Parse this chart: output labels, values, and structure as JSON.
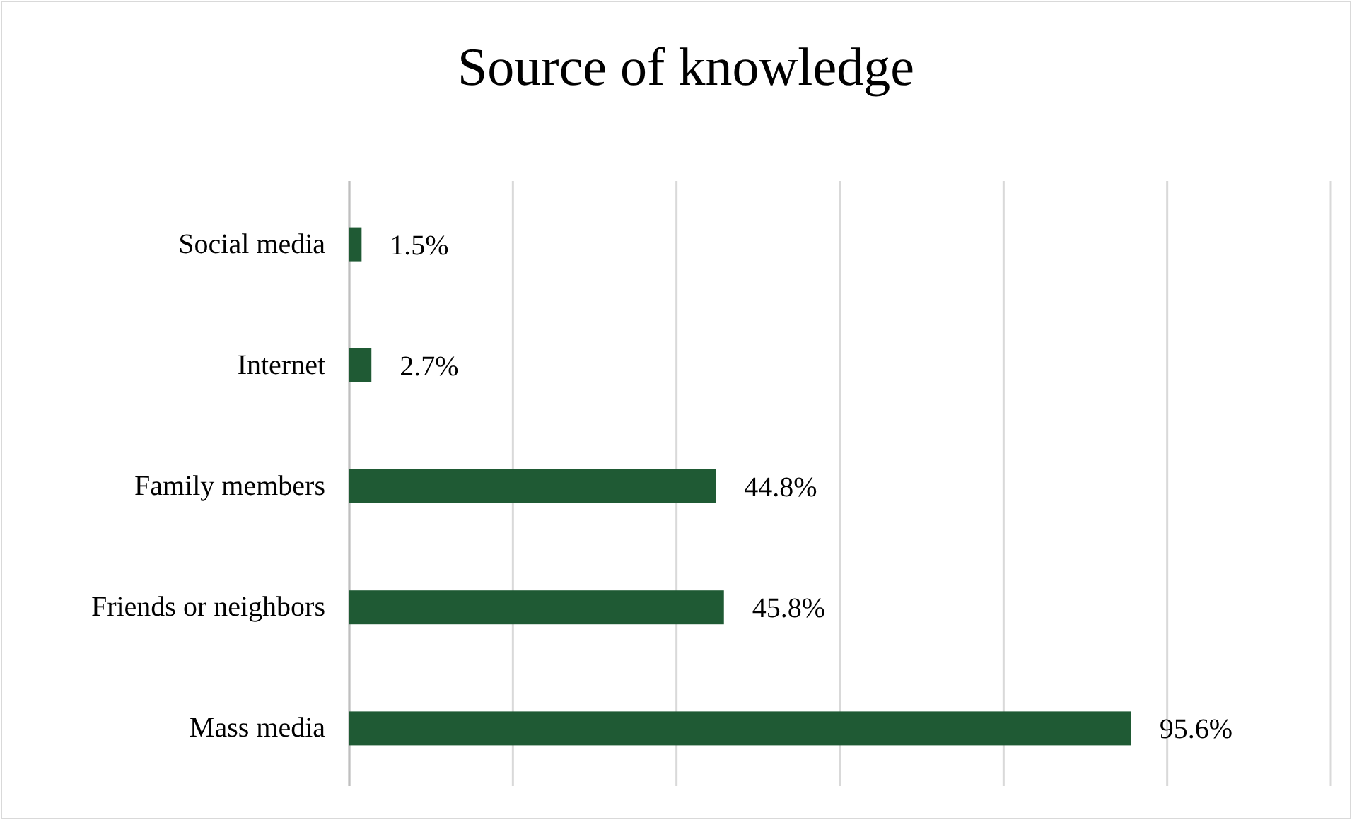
{
  "chart_data": {
    "type": "bar",
    "orientation": "horizontal",
    "title": "Source of knowledge",
    "categories": [
      "Social media",
      "Internet",
      "Family members",
      "Friends or neighbors",
      "Mass media"
    ],
    "values": [
      1.5,
      2.7,
      44.8,
      45.8,
      95.6
    ],
    "value_labels": [
      "1.5%",
      "2.7%",
      "44.8%",
      "45.8%",
      "95.6%"
    ],
    "color": "#1f5a34",
    "xlim": [
      0,
      120
    ],
    "xticks": [
      {
        "value": 0,
        "label": null
      },
      {
        "value": 20,
        "label": null
      },
      {
        "value": 40,
        "label": null
      },
      {
        "value": 60,
        "label": null
      },
      {
        "value": 80,
        "label": null
      },
      {
        "value": 100,
        "label": null
      },
      {
        "value": 120,
        "label": null
      }
    ],
    "grid": "x",
    "tick_labels": "y"
  }
}
